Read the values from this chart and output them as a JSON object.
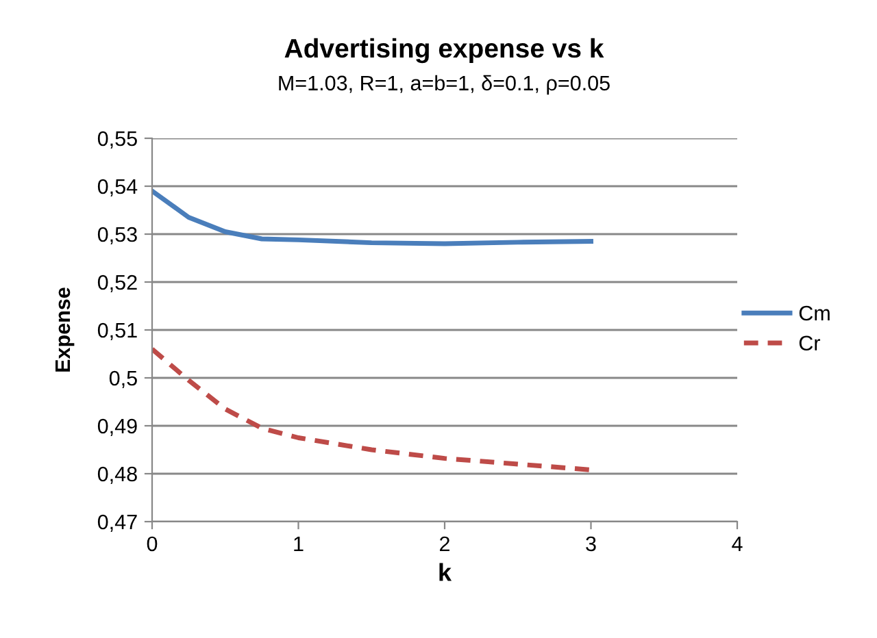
{
  "chart_data": {
    "type": "line",
    "title": "Advertising expense vs k",
    "subtitle": "M=1.03, R=1, a=b=1, δ=0.1, ρ=0.05",
    "xlabel": "k",
    "ylabel": "Expense",
    "x": [
      0,
      0.25,
      0.5,
      0.75,
      1,
      1.5,
      2,
      2.5,
      3
    ],
    "series": [
      {
        "name": "Cm",
        "color": "#4a7ebb",
        "line_style": "solid",
        "values": [
          0.539,
          0.5335,
          0.5305,
          0.529,
          0.5288,
          0.5282,
          0.528,
          0.5283,
          0.5285
        ]
      },
      {
        "name": "Cr",
        "color": "#be4b48",
        "line_style": "dashed",
        "values": [
          0.506,
          0.4995,
          0.4935,
          0.4895,
          0.4875,
          0.485,
          0.4832,
          0.482,
          0.4808
        ]
      }
    ],
    "xlim": [
      0,
      4
    ],
    "xticks": [
      0,
      1,
      2,
      3,
      4
    ],
    "ylim": [
      0.47,
      0.55
    ],
    "yticks": [
      {
        "value": 0.47,
        "label": "0,47"
      },
      {
        "value": 0.48,
        "label": "0,48"
      },
      {
        "value": 0.49,
        "label": "0,49"
      },
      {
        "value": 0.5,
        "label": "0,5"
      },
      {
        "value": 0.51,
        "label": "0,51"
      },
      {
        "value": 0.52,
        "label": "0,52"
      },
      {
        "value": 0.53,
        "label": "0,53"
      },
      {
        "value": 0.54,
        "label": "0,54"
      },
      {
        "value": 0.55,
        "label": "0,55"
      }
    ],
    "grid": "y",
    "legend": "right",
    "marker": "none"
  }
}
